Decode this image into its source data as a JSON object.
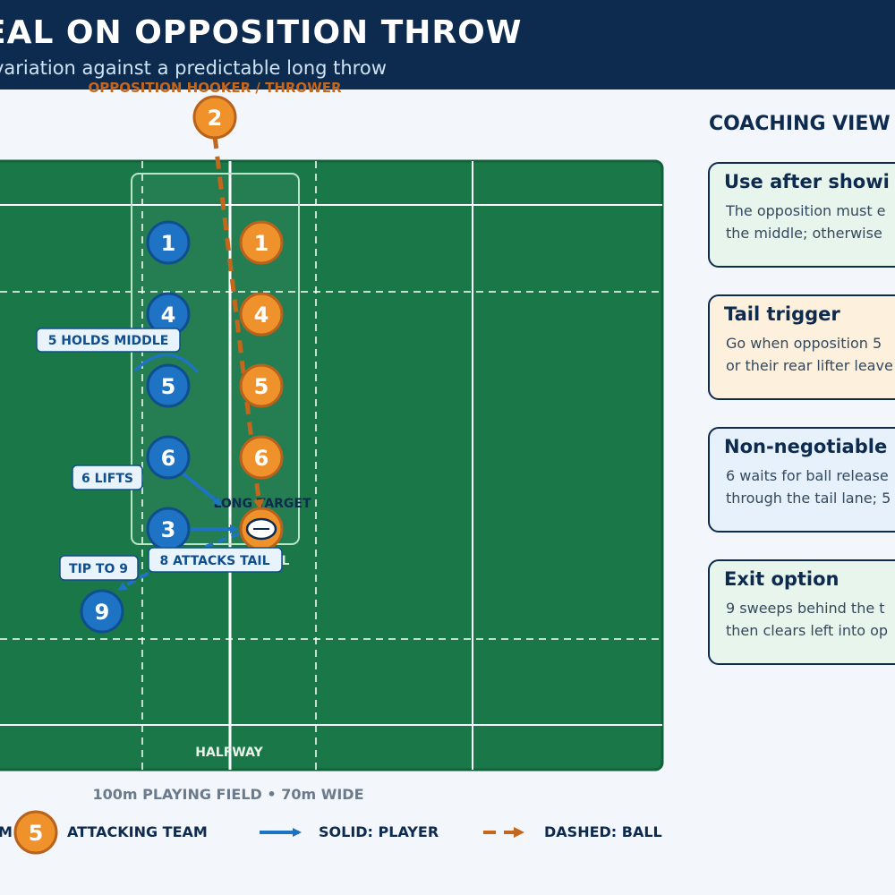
{
  "header": {
    "title": "EAL ON OPPOSITION THROW",
    "subtitle": "variation against a predictable long throw"
  },
  "colors": {
    "header_bg": "#0d2a4f",
    "pitch_green": "#1a7848",
    "defending_blue": "#1f73c4",
    "attacking_orange": "#f0922b",
    "ball_dashed": "#c4661c"
  },
  "pitch": {
    "thrower_label": "OPPOSITION HOOKER / THROWER",
    "halfway_label": "HALFWAY",
    "long_target_label": "LONG TARGET",
    "tail_label": "L",
    "left_edge_label": "—"
  },
  "players": {
    "thrower": "2",
    "blue": [
      "1",
      "4",
      "5",
      "6",
      "3",
      "9"
    ],
    "orange": [
      "1",
      "4",
      "5",
      "6"
    ]
  },
  "callouts": {
    "holds_middle": "5 HOLDS MIDDLE",
    "lifts": "6 LIFTS",
    "attacks_tail": "8 ATTACKS TAIL",
    "tip_to_9": "TIP TO 9"
  },
  "caption": "100m PLAYING FIELD  •  70m WIDE",
  "legend": {
    "left_fragment": "M",
    "attack_number": "5",
    "attack_label": "ATTACKING TEAM",
    "solid_label": "SOLID: PLAYER",
    "dashed_label": "DASHED: BALL"
  },
  "coaching": {
    "title": "COACHING VIEW",
    "cards": [
      {
        "title": "Use after showi",
        "lines": [
          "The opposition must e",
          "the middle; otherwise"
        ],
        "bg": "#e8f5ec"
      },
      {
        "title": "Tail trigger",
        "lines": [
          "Go when opposition 5",
          "or their rear lifter leave"
        ],
        "bg": "#fdf0dc"
      },
      {
        "title": "Non-negotiable",
        "lines": [
          "6 waits for ball release",
          "through the tail lane; 5"
        ],
        "bg": "#e6f1fc"
      },
      {
        "title": "Exit option",
        "lines": [
          "9 sweeps behind the t",
          "then clears left into op"
        ],
        "bg": "#e8f5ec"
      }
    ]
  }
}
